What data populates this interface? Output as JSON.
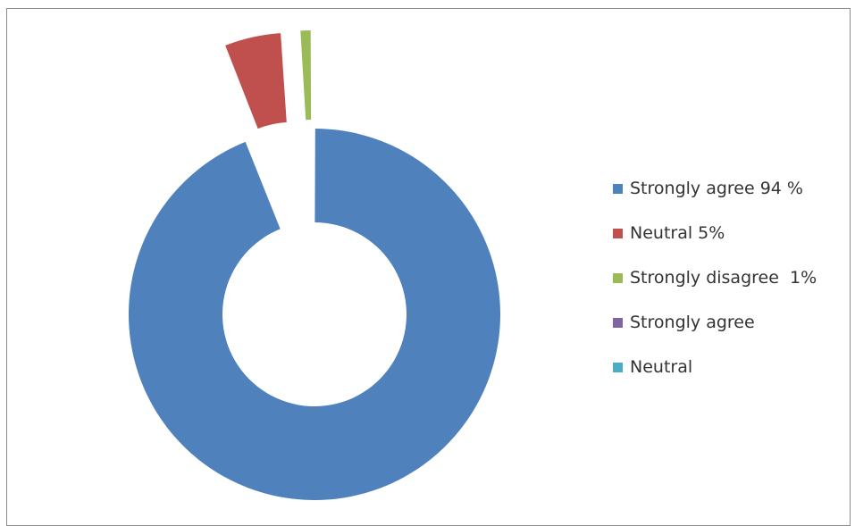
{
  "chart_data": {
    "type": "pie",
    "style": "exploded doughnut",
    "legend_position": "right",
    "slices": [
      {
        "label": "Strongly agree 94 %",
        "value": 94,
        "color": "#4F81BD",
        "exploded": false
      },
      {
        "label": "Neutral 5%",
        "value": 5,
        "color": "#C0504D",
        "exploded": true
      },
      {
        "label": "Strongly disagree  1%",
        "value": 1,
        "color": "#9BBB59",
        "exploded": true
      },
      {
        "label": "Strongly agree",
        "value": 0,
        "color": "#8064A2",
        "exploded": false
      },
      {
        "label": "Neutral",
        "value": 0,
        "color": "#4BACC6",
        "exploded": false
      }
    ]
  }
}
